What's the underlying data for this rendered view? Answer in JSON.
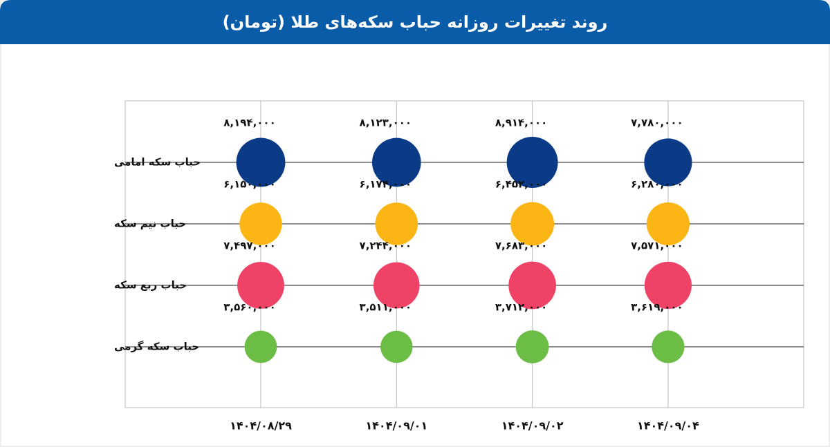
{
  "chart_data": {
    "type": "bubble",
    "title": "روند تغییرات روزانه حباب سکه‌های طلا (تومان)",
    "categories": [
      "۱۴۰۴/۰۸/۲۹",
      "۱۴۰۴/۰۹/۰۱",
      "۱۴۰۴/۰۹/۰۲",
      "۱۴۰۴/۰۹/۰۴"
    ],
    "series": [
      {
        "name": "حباب سکه امامی",
        "color": "#0b3b86",
        "values": [
          8194000,
          8123000,
          8914000,
          7780000
        ],
        "value_labels": [
          "۸,۱۹۴,۰۰۰",
          "۸,۱۲۳,۰۰۰",
          "۸,۹۱۴,۰۰۰",
          "۷,۷۸۰,۰۰۰"
        ]
      },
      {
        "name": "حباب نیم سکه",
        "color": "#fbb616",
        "values": [
          6150000,
          6174000,
          6452000,
          6280000
        ],
        "value_labels": [
          "۶,۱۵۰,۰۰۰",
          "۶,۱۷۴,۰۰۰",
          "۶,۴۵۲,۰۰۰",
          "۶,۲۸۰,۰۰۰"
        ]
      },
      {
        "name": "حباب ربع سکه",
        "color": "#ee4267",
        "values": [
          7497000,
          7244000,
          7683000,
          7571000
        ],
        "value_labels": [
          "۷,۴۹۷,۰۰۰",
          "۷,۲۴۴,۰۰۰",
          "۷,۶۸۳,۰۰۰",
          "۷,۵۷۱,۰۰۰"
        ]
      },
      {
        "name": "حباب سکه گرمی",
        "color": "#6cbd45",
        "values": [
          3560000,
          3511000,
          3712000,
          3619000
        ],
        "value_labels": [
          "۳,۵۶۰,۰۰۰",
          "۳,۵۱۱,۰۰۰",
          "۳,۷۱۲,۰۰۰",
          "۳,۶۱۹,۰۰۰"
        ]
      }
    ],
    "grid": true
  }
}
